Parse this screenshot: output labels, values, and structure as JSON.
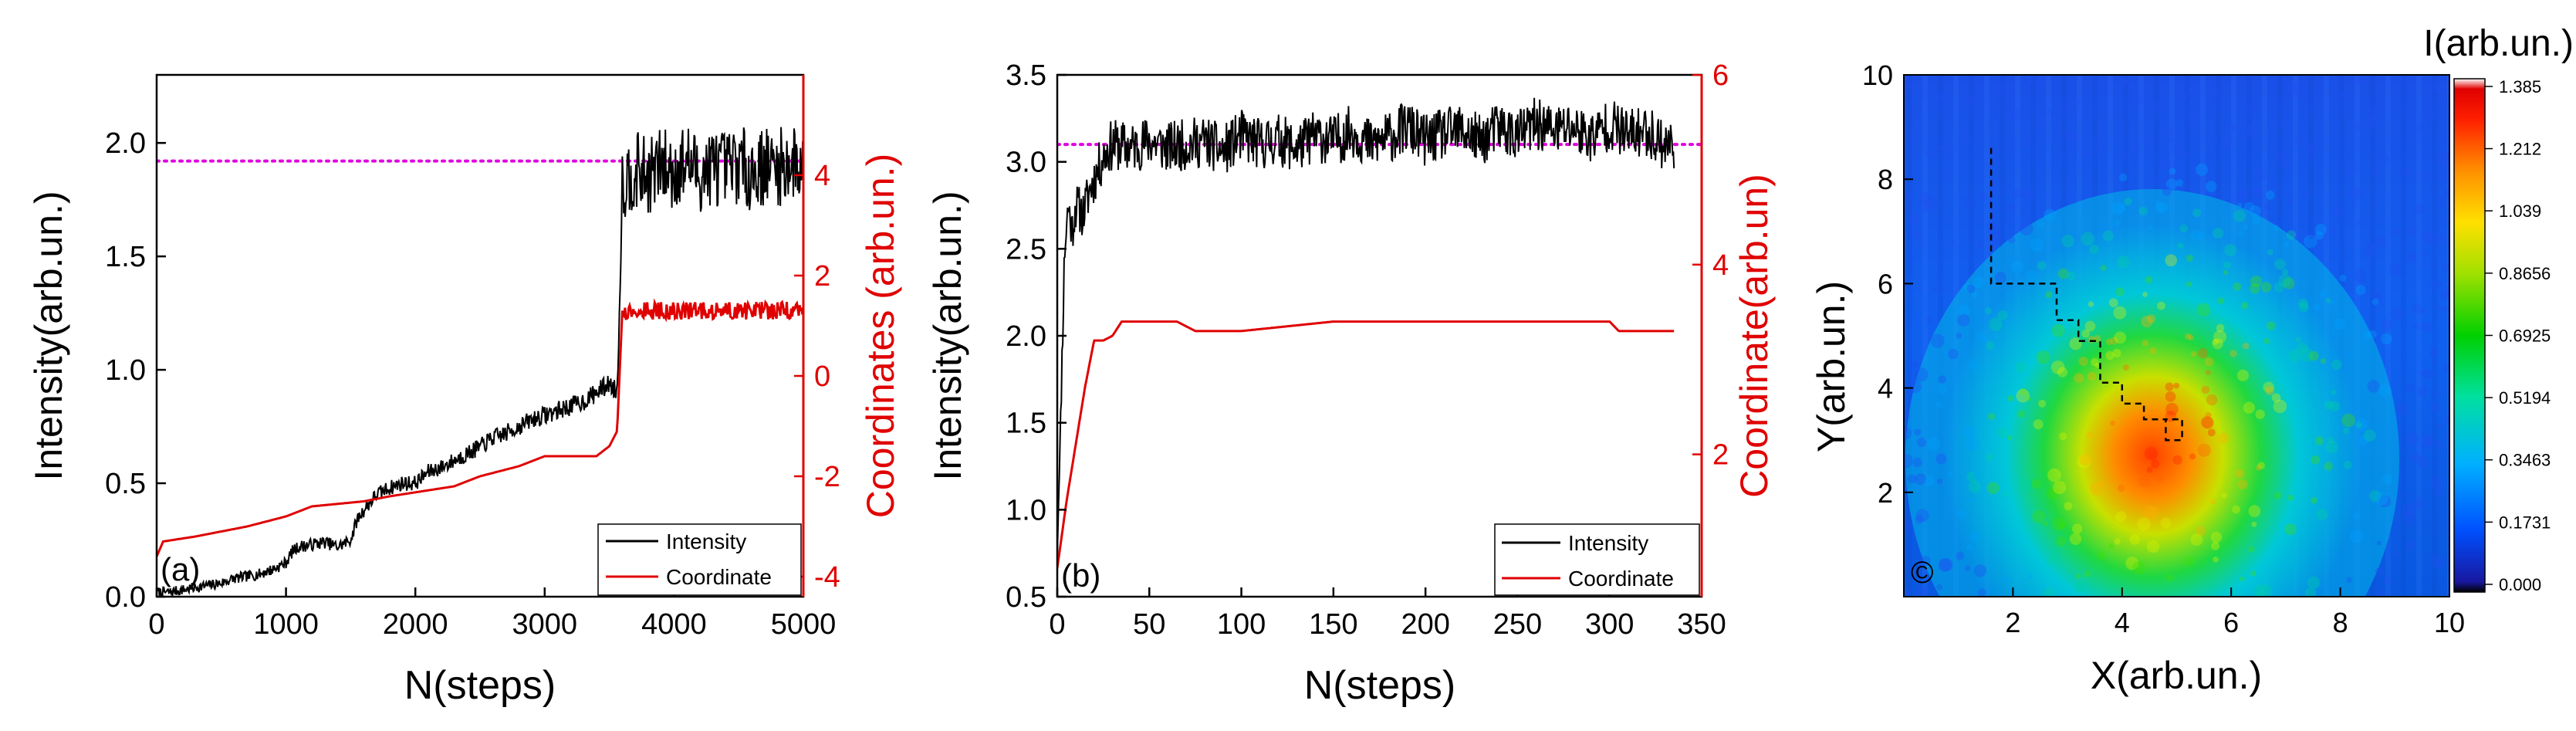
{
  "chart_data": [
    {
      "panel_label": "(a)",
      "type": "line",
      "xlabel": "N(steps)",
      "ylabel": "Intensity(arb.un.)",
      "y2label": "Coordinates (arb.un.)",
      "xlim": [
        0,
        5000
      ],
      "ylim": [
        0,
        2.3
      ],
      "y2lim": [
        -4.4,
        6.0
      ],
      "x_ticks": [
        0,
        1000,
        2000,
        3000,
        4000,
        5000
      ],
      "y_ticks": [
        0.0,
        0.5,
        1.0,
        1.5,
        2.0
      ],
      "y2_ticks": [
        -4,
        -2,
        0,
        2,
        4
      ],
      "x_tick_labels": [
        "0",
        "1000",
        "2000",
        "3000",
        "4000",
        "5000"
      ],
      "y_tick_labels": [
        "0.0",
        "0.5",
        "1.0",
        "1.5",
        "2.0"
      ],
      "y2_tick_labels": [
        "-4",
        "-2",
        "0",
        "2",
        "4"
      ],
      "reference_line": {
        "y": 1.92,
        "color": "#e000e0",
        "style": "dotted"
      },
      "series": [
        {
          "name": "Intensity",
          "color": "#000000",
          "axis": "left",
          "x": [
            0,
            100,
            200,
            300,
            400,
            500,
            600,
            700,
            800,
            900,
            1000,
            1050,
            1100,
            1200,
            1300,
            1400,
            1500,
            1550,
            1600,
            1700,
            1800,
            1900,
            2000,
            2100,
            2200,
            2300,
            2400,
            2500,
            2600,
            2700,
            2800,
            2900,
            3000,
            3100,
            3200,
            3300,
            3400,
            3500,
            3560,
            3580,
            3600,
            3700,
            3800,
            3900,
            4000,
            4100,
            4200,
            4300,
            4400,
            4500,
            4600,
            4700,
            4800,
            4900,
            5000
          ],
          "values": [
            0.02,
            0.02,
            0.03,
            0.04,
            0.05,
            0.06,
            0.08,
            0.09,
            0.1,
            0.12,
            0.15,
            0.2,
            0.22,
            0.23,
            0.24,
            0.22,
            0.25,
            0.34,
            0.38,
            0.45,
            0.48,
            0.5,
            0.5,
            0.55,
            0.57,
            0.6,
            0.63,
            0.66,
            0.7,
            0.72,
            0.75,
            0.78,
            0.8,
            0.82,
            0.84,
            0.86,
            0.9,
            0.94,
            0.9,
            1.3,
            1.82,
            1.88,
            1.85,
            1.9,
            1.87,
            1.92,
            1.86,
            1.9,
            1.88,
            1.91,
            1.87,
            1.9,
            1.89,
            1.91,
            1.9
          ]
        },
        {
          "name": "Coordinate",
          "color": "#e00000",
          "axis": "right",
          "x": [
            0,
            50,
            300,
            700,
            1000,
            1200,
            1600,
            1800,
            2300,
            2500,
            2800,
            3000,
            3400,
            3500,
            3560,
            3600,
            3700,
            4000,
            4500,
            5000
          ],
          "values": [
            -3.6,
            -3.3,
            -3.2,
            -3.0,
            -2.8,
            -2.6,
            -2.5,
            -2.4,
            -2.2,
            -2.0,
            -1.8,
            -1.6,
            -1.6,
            -1.4,
            -1.1,
            1.3,
            1.3,
            1.3,
            1.3,
            1.3
          ]
        }
      ],
      "legend": {
        "position": "bottom-right",
        "entries": [
          "Intensity",
          "Coordinate"
        ]
      }
    },
    {
      "panel_label": "(b)",
      "type": "line",
      "xlabel": "N(steps)",
      "ylabel": "Intensity(arb.un.)",
      "y2label": "Coordinate(arb.un)",
      "xlim": [
        0,
        350
      ],
      "ylim": [
        0.5,
        3.5
      ],
      "y2lim": [
        0.5,
        6.0
      ],
      "x_ticks": [
        0,
        50,
        100,
        150,
        200,
        250,
        300,
        350
      ],
      "y_ticks": [
        0.5,
        1.0,
        1.5,
        2.0,
        2.5,
        3.0,
        3.5
      ],
      "y2_ticks": [
        2,
        4,
        6
      ],
      "x_tick_labels": [
        "0",
        "50",
        "100",
        "150",
        "200",
        "250",
        "300",
        "350"
      ],
      "y_tick_labels": [
        "0.5",
        "1.0",
        "1.5",
        "2.0",
        "2.5",
        "3.0",
        "3.5"
      ],
      "y2_tick_labels": [
        "2",
        "4",
        "6"
      ],
      "reference_line": {
        "y": 3.1,
        "color": "#e000e0",
        "style": "dotted"
      },
      "series": [
        {
          "name": "Intensity",
          "color": "#000000",
          "axis": "left",
          "x": [
            0,
            2,
            4,
            6,
            8,
            10,
            14,
            18,
            22,
            26,
            30,
            40,
            50,
            60,
            70,
            80,
            90,
            100,
            110,
            120,
            130,
            140,
            150,
            160,
            170,
            180,
            190,
            200,
            210,
            220,
            230,
            240,
            250,
            260,
            270,
            280,
            290,
            300,
            310,
            320,
            330,
            335
          ],
          "values": [
            0.75,
            1.6,
            2.5,
            2.75,
            2.6,
            2.75,
            2.7,
            2.85,
            2.95,
            3.05,
            3.1,
            3.08,
            3.12,
            3.08,
            3.1,
            3.12,
            3.06,
            3.15,
            3.1,
            3.13,
            3.08,
            3.15,
            3.12,
            3.18,
            3.1,
            3.14,
            3.2,
            3.12,
            3.16,
            3.18,
            3.12,
            3.2,
            3.15,
            3.22,
            3.18,
            3.2,
            3.14,
            3.22,
            3.15,
            3.18,
            3.1,
            3.1
          ]
        },
        {
          "name": "Coordinate",
          "color": "#e00000",
          "axis": "right",
          "x": [
            0,
            5,
            10,
            15,
            20,
            25,
            30,
            35,
            40,
            45,
            65,
            75,
            100,
            150,
            200,
            300,
            305,
            335
          ],
          "values": [
            0.8,
            1.5,
            2.1,
            2.7,
            3.2,
            3.2,
            3.25,
            3.4,
            3.4,
            3.4,
            3.4,
            3.3,
            3.3,
            3.4,
            3.4,
            3.4,
            3.3,
            3.3
          ]
        }
      ],
      "legend": {
        "position": "bottom-right",
        "entries": [
          "Intensity",
          "Coordinate"
        ]
      }
    },
    {
      "panel_label": "©",
      "type": "heatmap",
      "xlabel": "X(arb.un.)",
      "ylabel": "Y(arb.un.)",
      "xlim": [
        0,
        10
      ],
      "ylim": [
        0,
        10
      ],
      "x_ticks": [
        2,
        4,
        6,
        8,
        10
      ],
      "y_ticks": [
        2,
        4,
        6,
        8,
        10
      ],
      "x_tick_labels": [
        "2",
        "4",
        "6",
        "8",
        "10"
      ],
      "y_tick_labels": [
        "2",
        "4",
        "6",
        "8",
        "10"
      ],
      "colorbar_title": "I(arb.un.)",
      "colorbar_ticks": [
        0.0,
        0.1731,
        0.3463,
        0.5194,
        0.6925,
        0.8656,
        1.039,
        1.212,
        1.385
      ],
      "colorbar_tick_labels": [
        "0.000",
        "0.1731",
        "0.3463",
        "0.5194",
        "0.6925",
        "0.8656",
        "1.039",
        "1.212",
        "1.385"
      ],
      "peak": {
        "x": 4.8,
        "y": 3.2,
        "max": 1.385
      },
      "path": {
        "style": "dashed",
        "color": "#000000",
        "x": [
          1.6,
          1.6,
          2.8,
          2.8,
          3.2,
          3.2,
          3.6,
          3.6,
          4.0,
          4.0,
          4.4,
          4.4,
          4.8,
          4.8,
          5.1,
          5.1,
          4.8
        ],
        "y": [
          8.6,
          6.0,
          6.0,
          5.3,
          5.3,
          4.9,
          4.9,
          4.1,
          4.1,
          3.7,
          3.7,
          3.4,
          3.4,
          3.0,
          3.0,
          3.4,
          3.4
        ]
      }
    }
  ]
}
